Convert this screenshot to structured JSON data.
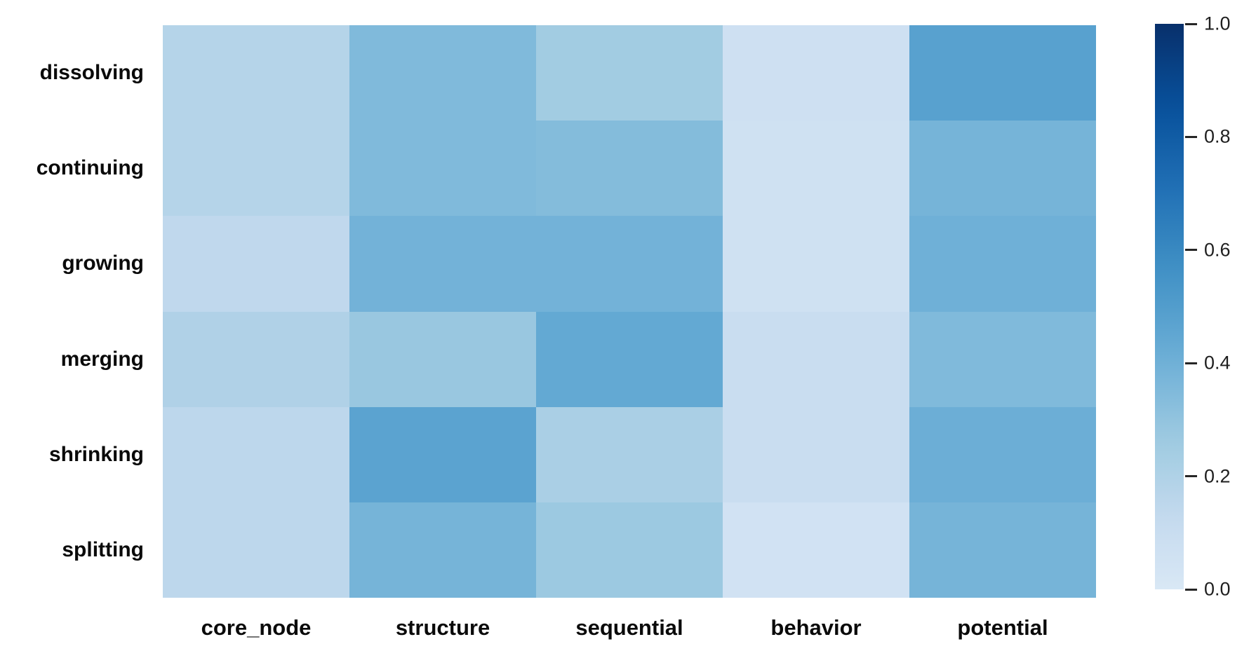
{
  "figure": {
    "background_color": "#ffffff",
    "label_color": "#0a0a0a",
    "tick_color": "#1f1f1f"
  },
  "chart_data": {
    "type": "heatmap",
    "title": "",
    "xlabel": "",
    "ylabel": "",
    "rows": [
      "dissolving",
      "continuing",
      "growing",
      "merging",
      "shrinking",
      "splitting"
    ],
    "columns": [
      "core_node",
      "structure",
      "sequential",
      "behavior",
      "potential"
    ],
    "values": [
      [
        0.18,
        0.35,
        0.25,
        0.07,
        0.48
      ],
      [
        0.18,
        0.35,
        0.34,
        0.06,
        0.38
      ],
      [
        0.14,
        0.39,
        0.39,
        0.06,
        0.4
      ],
      [
        0.2,
        0.28,
        0.44,
        0.1,
        0.35
      ],
      [
        0.15,
        0.47,
        0.22,
        0.1,
        0.41
      ],
      [
        0.15,
        0.38,
        0.27,
        0.05,
        0.38
      ]
    ],
    "vmin": 0.0,
    "vmax": 1.0,
    "grid": false,
    "legend_position": "right-colorbar",
    "colormap": {
      "name": "Blues-truncated",
      "anchors": [
        "#f7fbff",
        "#deebf7",
        "#c6dbef",
        "#9ecae1",
        "#6baed6",
        "#4292c6",
        "#2171b5",
        "#08519c",
        "#08306b"
      ],
      "truncate_start": 0.15
    },
    "colorbar": {
      "orientation": "vertical",
      "ticks": [
        {
          "value": 1.0,
          "label": "1.0"
        },
        {
          "value": 0.8,
          "label": "0.8"
        },
        {
          "value": 0.6,
          "label": "0.6"
        },
        {
          "value": 0.4,
          "label": "0.4"
        },
        {
          "value": 0.2,
          "label": "0.2"
        },
        {
          "value": 0.0,
          "label": "0.0"
        }
      ]
    }
  }
}
